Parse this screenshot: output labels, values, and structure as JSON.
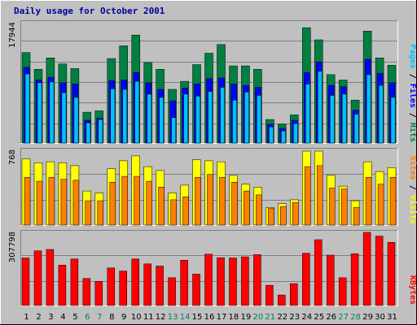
{
  "chart_data": {
    "type": "bar",
    "title": "Daily usage for October 2001",
    "categories": [
      "1",
      "2",
      "3",
      "4",
      "5",
      "6",
      "7",
      "8",
      "9",
      "10",
      "11",
      "12",
      "13",
      "14",
      "15",
      "16",
      "17",
      "18",
      "19",
      "20",
      "21",
      "22",
      "23",
      "24",
      "25",
      "26",
      "27",
      "28",
      "29",
      "30",
      "31"
    ],
    "weekend_days": [
      "6",
      "7",
      "13",
      "14",
      "20",
      "21",
      "27",
      "28"
    ],
    "colors": {
      "background": "#c0c0c0",
      "title": "#0000a0",
      "hits": "#008040",
      "files": "#0000ff",
      "pages": "#00c0ff",
      "visits": "#ffff00",
      "sites": "#ff8000",
      "kbytes": "#ff0000",
      "weekend": "#00805c",
      "weekday": "#000000"
    },
    "panels": [
      {
        "id": "hits",
        "max_label": "17944",
        "ymax": 17944,
        "series_labels": [
          "Pages",
          "Files",
          "Hits"
        ],
        "series": [
          {
            "name": "Hits",
            "color": "#008040",
            "values": [
              13500,
              11000,
              12700,
              11800,
              11100,
              4600,
              4800,
              12600,
              14500,
              16100,
              12000,
              11000,
              8000,
              9200,
              11700,
              13400,
              14700,
              11500,
              11500,
              11000,
              3500,
              2800,
              4200,
              17200,
              15400,
              10200,
              9400,
              6400,
              16700,
              12700,
              11600
            ]
          },
          {
            "name": "Files",
            "color": "#0000ff",
            "values": [
              11300,
              9400,
              9800,
              9000,
              8800,
              3400,
              3700,
              9300,
              9400,
              10500,
              9000,
              8000,
              6300,
              8200,
              8800,
              9600,
              9700,
              8800,
              8600,
              8300,
              2800,
              2200,
              3400,
              10500,
              12100,
              8600,
              8400,
              4900,
              12500,
              10400,
              9000
            ]
          },
          {
            "name": "Pages",
            "color": "#00c0ff",
            "values": [
              10300,
              9000,
              9100,
              7500,
              6800,
              3000,
              3500,
              8100,
              8000,
              9200,
              7300,
              6800,
              3800,
              7300,
              7000,
              7700,
              8300,
              6400,
              7600,
              7100,
              2400,
              1800,
              2900,
              8800,
              10700,
              7100,
              7300,
              4300,
              10200,
              8600,
              6800
            ]
          }
        ]
      },
      {
        "id": "visits",
        "max_label": "768",
        "ymax": 768,
        "series_labels": [
          "Sites",
          "Visits"
        ],
        "series": [
          {
            "name": "Visits",
            "color": "#ffff00",
            "values": [
              680,
              640,
              650,
              640,
              610,
              350,
              330,
              580,
              660,
              710,
              600,
              560,
              330,
              410,
              670,
              660,
              650,
              510,
              420,
              390,
              180,
              220,
              260,
              760,
              760,
              510,
              400,
              250,
              650,
              550,
              590
            ]
          },
          {
            "name": "Sites",
            "color": "#ff8000",
            "values": [
              490,
              450,
              490,
              470,
              460,
              250,
              250,
              440,
              500,
              500,
              450,
              390,
              260,
              290,
              490,
              520,
              490,
              440,
              350,
              310,
              170,
              190,
              230,
              600,
              610,
              380,
              370,
              180,
              490,
              420,
              490
            ]
          }
        ]
      },
      {
        "id": "kbytes",
        "max_label": "307798",
        "ymax": 307798,
        "series_labels": [
          "KBytes"
        ],
        "series": [
          {
            "name": "KBytes",
            "color": "#ff0000",
            "values": [
              200000,
              230000,
              236000,
              170000,
              196000,
              114000,
              102000,
              158000,
              145000,
              196000,
              175000,
              166000,
              117000,
              191000,
              132000,
              216000,
              201000,
              200000,
              205000,
              214000,
              85000,
              44000,
              92000,
              220000,
              277000,
              212000,
              117000,
              218000,
              313000,
              292000,
              266000
            ]
          }
        ]
      }
    ]
  }
}
